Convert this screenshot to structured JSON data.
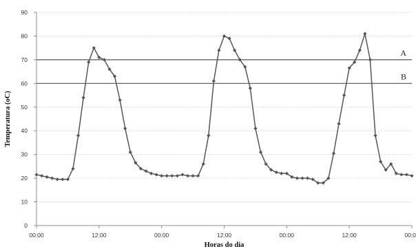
{
  "chart_data": {
    "type": "line",
    "title": "",
    "xlabel": "Horas do dia",
    "ylabel": "Temperatura (oC)",
    "ylim": [
      0,
      90
    ],
    "yticks": [
      0,
      10,
      20,
      30,
      40,
      50,
      60,
      70,
      80,
      90
    ],
    "xlim": [
      0,
      72
    ],
    "xticks": [
      {
        "value": 0,
        "label": "00:00"
      },
      {
        "value": 12,
        "label": "12:00"
      },
      {
        "value": 24,
        "label": "00:00"
      },
      {
        "value": 36,
        "label": "12:00"
      },
      {
        "value": 48,
        "label": "00:00"
      },
      {
        "value": 60,
        "label": "12:00"
      },
      {
        "value": 72,
        "label": "00:00"
      }
    ],
    "grid": true,
    "legend": "none",
    "reference_lines": [
      {
        "label": "A",
        "y": 70
      },
      {
        "label": "B",
        "y": 60
      }
    ],
    "series_color": "#555555",
    "series": [
      {
        "x": [
          0,
          1,
          2,
          3,
          4,
          5,
          6,
          7,
          8,
          9,
          10,
          11,
          12,
          13,
          14,
          15,
          16,
          17,
          18,
          19,
          20,
          21,
          22,
          23,
          24,
          25,
          26,
          27,
          28,
          29,
          30,
          31,
          32,
          33,
          34,
          35,
          36,
          37,
          38,
          39,
          40,
          41,
          42,
          43,
          44,
          45,
          46,
          47,
          48,
          49,
          50,
          51,
          52,
          53,
          54,
          55,
          56,
          57,
          58,
          59,
          60,
          61,
          62,
          63,
          64,
          65,
          66,
          67,
          68,
          69,
          70,
          71,
          72
        ],
        "values": [
          21.5,
          21.0,
          20.5,
          20.0,
          19.5,
          19.5,
          19.5,
          24.0,
          38.0,
          54.0,
          69.0,
          75.0,
          71.0,
          70.0,
          66.0,
          63.0,
          53.0,
          41.0,
          31.0,
          26.5,
          24.0,
          23.0,
          22.0,
          21.5,
          21.0,
          21.0,
          21.0,
          21.0,
          21.5,
          21.0,
          21.0,
          21.0,
          26.0,
          38.0,
          61.0,
          74.0,
          80.0,
          79.0,
          74.0,
          70.0,
          67.0,
          58.0,
          41.0,
          31.0,
          26.0,
          23.5,
          22.5,
          22.0,
          22.0,
          20.5,
          20.0,
          20.0,
          20.0,
          19.5,
          18.0,
          18.0,
          20.0,
          30.5,
          43.0,
          55.0,
          66.5,
          69.0,
          74.0,
          81.0,
          70.0,
          38.0,
          27.0,
          23.5,
          26.0,
          22.0,
          21.5,
          21.5,
          21.0
        ]
      }
    ]
  }
}
